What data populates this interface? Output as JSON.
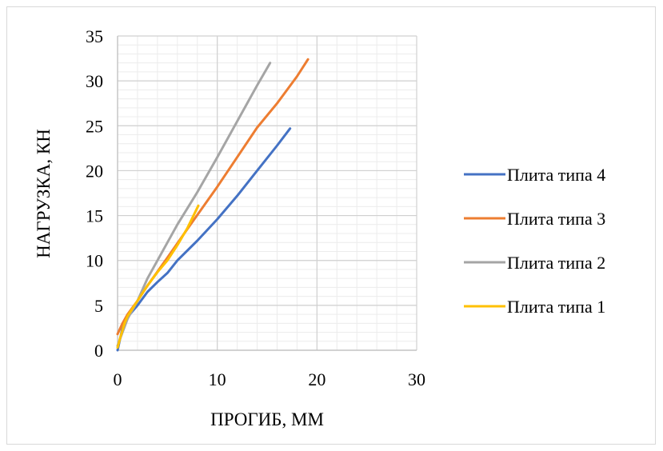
{
  "chart_data": {
    "type": "line",
    "title": "",
    "xlabel": "ПРОГИБ, ММ",
    "ylabel": "НАГРУЗКА, КН",
    "xlim": [
      0,
      30
    ],
    "ylim": [
      0,
      35
    ],
    "x_ticks": [
      0,
      10,
      20,
      30
    ],
    "y_ticks": [
      0,
      5,
      10,
      15,
      20,
      25,
      30,
      35
    ],
    "grid": true,
    "minor_grid": true,
    "legend_position": "right",
    "series": [
      {
        "name": "Плита типа 4",
        "color": "#4472C4",
        "points": [
          [
            0.0,
            0.0
          ],
          [
            0.2,
            1.0
          ],
          [
            0.5,
            2.5
          ],
          [
            1.0,
            3.7
          ],
          [
            2.0,
            5.0
          ],
          [
            3.0,
            6.5
          ],
          [
            4.0,
            7.6
          ],
          [
            5.0,
            8.6
          ],
          [
            6.0,
            10.0
          ],
          [
            8.0,
            12.2
          ],
          [
            10.0,
            14.6
          ],
          [
            12.0,
            17.2
          ],
          [
            14.0,
            20.0
          ],
          [
            16.0,
            22.8
          ],
          [
            17.3,
            24.7
          ]
        ]
      },
      {
        "name": "Плита типа 3",
        "color": "#ED7D31",
        "points": [
          [
            0.0,
            1.8
          ],
          [
            0.5,
            3.0
          ],
          [
            1.0,
            4.0
          ],
          [
            2.0,
            5.5
          ],
          [
            3.0,
            7.2
          ],
          [
            5.0,
            10.3
          ],
          [
            7.0,
            13.5
          ],
          [
            10.0,
            18.2
          ],
          [
            12.0,
            21.5
          ],
          [
            14.0,
            24.8
          ],
          [
            16.0,
            27.5
          ],
          [
            18.0,
            30.5
          ],
          [
            19.1,
            32.4
          ]
        ]
      },
      {
        "name": "Плита типа 2",
        "color": "#A5A5A5",
        "points": [
          [
            0.0,
            0.5
          ],
          [
            0.5,
            2.0
          ],
          [
            1.0,
            3.5
          ],
          [
            2.0,
            5.5
          ],
          [
            3.0,
            8.0
          ],
          [
            4.0,
            10.0
          ],
          [
            5.0,
            12.0
          ],
          [
            6.0,
            14.0
          ],
          [
            8.0,
            17.6
          ],
          [
            10.0,
            21.5
          ],
          [
            12.0,
            25.5
          ],
          [
            14.0,
            29.5
          ],
          [
            15.3,
            32.0
          ]
        ]
      },
      {
        "name": "Плита типа 1",
        "color": "#FFC000",
        "points": [
          [
            0.0,
            0.3
          ],
          [
            0.3,
            1.5
          ],
          [
            0.7,
            3.0
          ],
          [
            1.0,
            3.8
          ],
          [
            2.0,
            5.5
          ],
          [
            3.0,
            7.2
          ],
          [
            4.0,
            8.7
          ],
          [
            5.0,
            10.0
          ],
          [
            6.0,
            11.7
          ],
          [
            7.0,
            13.6
          ],
          [
            8.1,
            16.1
          ]
        ]
      }
    ]
  }
}
